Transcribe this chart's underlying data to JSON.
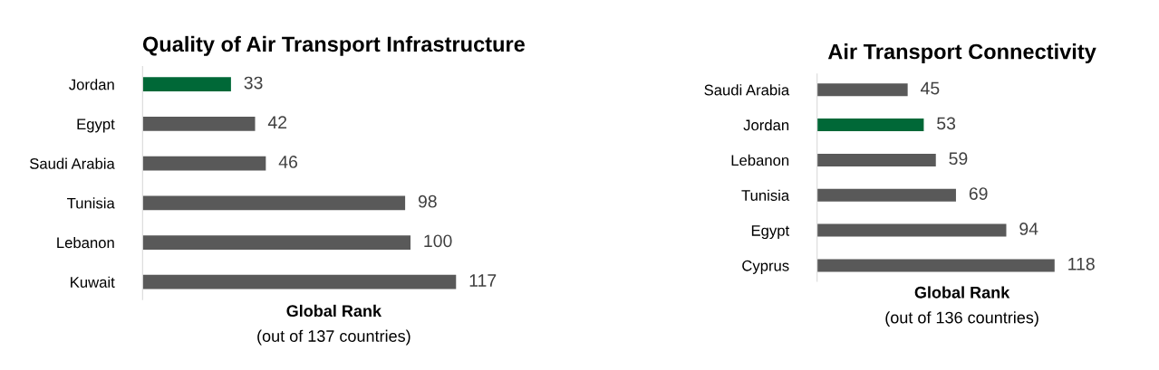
{
  "chart_data": [
    {
      "type": "bar",
      "orientation": "horizontal",
      "title": "Quality of Air Transport Infrastructure",
      "xlabel": "Global Rank",
      "annotations": [
        "(out of 137 countries)"
      ],
      "categories": [
        "Jordan",
        "Egypt",
        "Saudi Arabia",
        "Tunisia",
        "Lebanon",
        "Kuwait"
      ],
      "values": [
        33,
        42,
        46,
        98,
        100,
        117
      ],
      "colors": [
        "#006837",
        "#595959",
        "#595959",
        "#595959",
        "#595959",
        "#595959"
      ],
      "data_labels": true,
      "grid": false,
      "legend": false
    },
    {
      "type": "bar",
      "orientation": "horizontal",
      "title": "Air Transport Connectivity",
      "xlabel": "Global Rank",
      "annotations": [
        "(out of 136 countries)"
      ],
      "categories": [
        "Saudi Arabia",
        "Jordan",
        "Lebanon",
        "Tunisia",
        "Egypt",
        "Cyprus"
      ],
      "values": [
        45,
        53,
        59,
        69,
        94,
        118
      ],
      "colors": [
        "#595959",
        "#006837",
        "#595959",
        "#595959",
        "#595959",
        "#595959"
      ],
      "data_labels": true,
      "grid": false,
      "legend": false
    }
  ]
}
